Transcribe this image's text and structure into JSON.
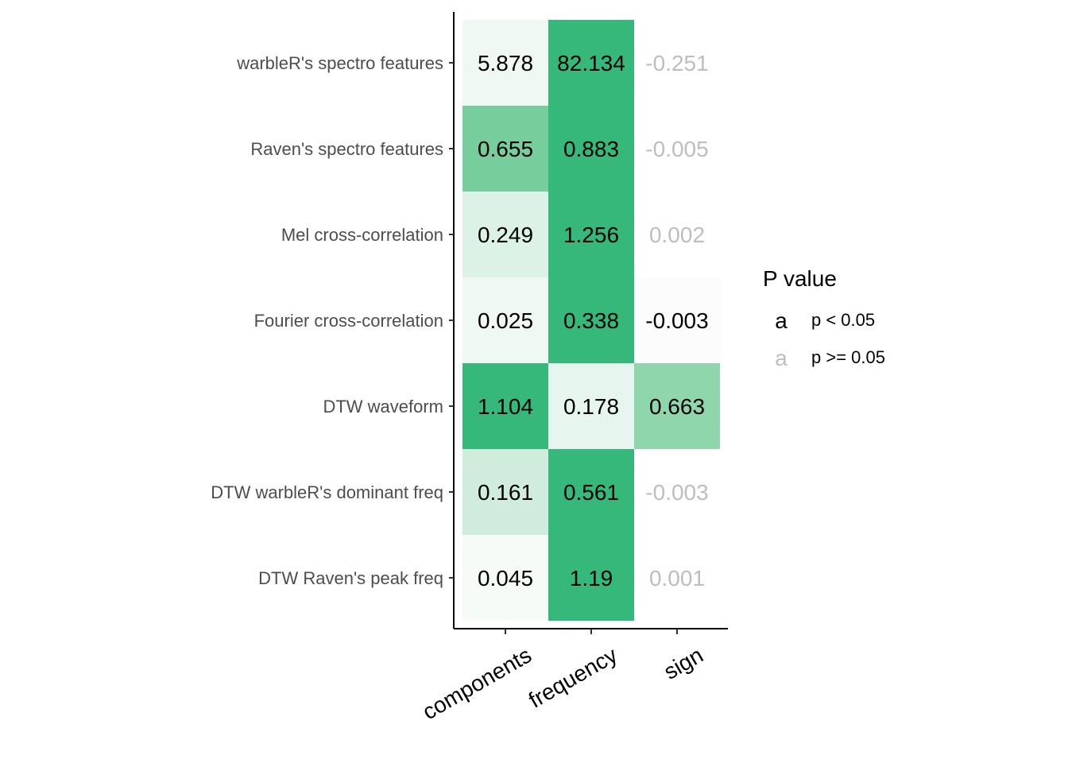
{
  "chart_data": {
    "type": "heatmap",
    "title": "",
    "xlabel": "",
    "ylabel": "",
    "rows": [
      "warbleR's spectro features",
      "Raven's spectro features",
      "Mel cross-correlation",
      "Fourier cross-correlation",
      "DTW waveform",
      "DTW warbleR's dominant freq",
      "DTW Raven's peak freq"
    ],
    "columns": [
      "components",
      "frequency",
      "sign"
    ],
    "labels": [
      [
        "5.878",
        "82.134",
        "-0.251"
      ],
      [
        "0.655",
        "0.883",
        "-0.005"
      ],
      [
        "0.249",
        "1.256",
        "0.002"
      ],
      [
        "0.025",
        "0.338",
        "-0.003"
      ],
      [
        "1.104",
        "0.178",
        "0.663"
      ],
      [
        "0.161",
        "0.561",
        "-0.003"
      ],
      [
        "0.045",
        "1.19",
        "0.001"
      ]
    ],
    "significant": [
      [
        true,
        true,
        false
      ],
      [
        true,
        true,
        false
      ],
      [
        true,
        true,
        false
      ],
      [
        true,
        true,
        true
      ],
      [
        true,
        true,
        true
      ],
      [
        true,
        true,
        false
      ],
      [
        true,
        true,
        false
      ]
    ],
    "fill_colors": [
      [
        "#eff8f3",
        "#36b87a",
        "#ffffff"
      ],
      [
        "#77cd9b",
        "#36b87a",
        "#ffffff"
      ],
      [
        "#ddf2e6",
        "#36b87a",
        "#ffffff"
      ],
      [
        "#eff8f3",
        "#36b87a",
        "#fcfcfc"
      ],
      [
        "#36b87a",
        "#e6f5ed",
        "#8fd6ac"
      ],
      [
        "#cfecdc",
        "#36b87a",
        "#ffffff"
      ],
      [
        "#f6fbf8",
        "#36b87a",
        "#ffffff"
      ]
    ],
    "text_colors": {
      "significant": "#000000",
      "not_significant": "#bebebe"
    },
    "legend": {
      "title": "P value",
      "position": "right",
      "key_glyph": "a",
      "items": [
        {
          "label": "p < 0.05",
          "color": "#000000"
        },
        {
          "label": "p >= 0.05",
          "color": "#bebebe"
        }
      ]
    },
    "grid": false
  }
}
